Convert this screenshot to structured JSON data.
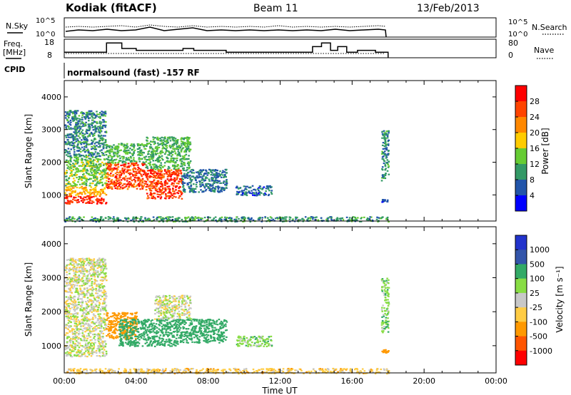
{
  "header": {
    "station": "Kodiak (fitACF)",
    "beam": "Beam 11",
    "date": "13/Feb/2013"
  },
  "summary_panels": {
    "nsky_label": "N.Sky",
    "nsky_ticks": [
      "10^5",
      "10^0"
    ],
    "nsearch_label": "N.Search",
    "nsearch_ticks": [
      "10^5",
      "10^0"
    ],
    "freq_label_line1": "Freq.",
    "freq_label_line2": "[MHz]",
    "freq_ticks": [
      "18",
      "8"
    ],
    "nave_label": "Nave",
    "nave_ticks": [
      "80",
      "0"
    ],
    "cpid_label": "CPID",
    "cpid_text": "normalsound (fast) -157 RF"
  },
  "power_colorbar": {
    "label": "Power [dB]",
    "ticks": [
      "28",
      "24",
      "20",
      "16",
      "12",
      "8",
      "4"
    ],
    "colors": [
      "#ff0000",
      "#ff4400",
      "#ff8800",
      "#ffcc00",
      "#66cc33",
      "#339966",
      "#2255aa",
      "#0000ff"
    ]
  },
  "velocity_colorbar": {
    "label": "Velocity [m s⁻¹]",
    "ticks": [
      "1000",
      "500",
      "100",
      "25",
      "-25",
      "-100",
      "-500",
      "-1000"
    ],
    "colors": [
      "#2233cc",
      "#3355aa",
      "#33aa66",
      "#88dd44",
      "#c8c8c8",
      "#ffcc44",
      "#ff9900",
      "#ff5500",
      "#ff0000"
    ]
  },
  "chart_data": [
    {
      "type": "heatmap",
      "title": "",
      "xlabel": "Time UT",
      "ylabel": "Slant Range [km]",
      "x_ticks": [
        "00:00",
        "04:00",
        "08:00",
        "12:00",
        "16:00",
        "20:00",
        "00:00"
      ],
      "y_ticks": [
        "1000",
        "2000",
        "3000",
        "4000"
      ],
      "xlim_hours": [
        0,
        24
      ],
      "ylim_km": [
        200,
        4500
      ],
      "quantity": "power",
      "regions": [
        {
          "t0": 0.0,
          "t1": 2.3,
          "r0": 750,
          "r1": 1000,
          "value": 28
        },
        {
          "t0": 0.0,
          "t1": 2.3,
          "r0": 1000,
          "r1": 1300,
          "value": 20
        },
        {
          "t0": 0.0,
          "t1": 2.3,
          "r0": 1300,
          "r1": 2200,
          "value": 14
        },
        {
          "t0": 0.0,
          "t1": 2.3,
          "r0": 2200,
          "r1": 3600,
          "value": 9
        },
        {
          "t0": 2.3,
          "t1": 4.5,
          "r0": 1200,
          "r1": 2000,
          "value": 26
        },
        {
          "t0": 2.3,
          "t1": 4.5,
          "r0": 2000,
          "r1": 2600,
          "value": 12
        },
        {
          "t0": 4.5,
          "t1": 6.5,
          "r0": 900,
          "r1": 1800,
          "value": 27
        },
        {
          "t0": 4.5,
          "t1": 7.0,
          "r0": 1800,
          "r1": 2800,
          "value": 12
        },
        {
          "t0": 6.5,
          "t1": 9.0,
          "r0": 1100,
          "r1": 1800,
          "value": 8
        },
        {
          "t0": 9.5,
          "t1": 11.5,
          "r0": 1000,
          "r1": 1300,
          "value": 7
        },
        {
          "t0": 17.6,
          "t1": 18.0,
          "r0": 1400,
          "r1": 3000,
          "value": 9
        },
        {
          "t0": 17.6,
          "t1": 18.0,
          "r0": 800,
          "r1": 900,
          "value": 6
        },
        {
          "t0": 0.0,
          "t1": 18.0,
          "r0": 200,
          "r1": 350,
          "value": 10
        }
      ]
    },
    {
      "type": "heatmap",
      "title": "",
      "xlabel": "Time UT",
      "ylabel": "Slant Range [km]",
      "x_ticks": [
        "00:00",
        "04:00",
        "08:00",
        "12:00",
        "16:00",
        "20:00",
        "00:00"
      ],
      "y_ticks": [
        "1000",
        "2000",
        "3000",
        "4000"
      ],
      "xlim_hours": [
        0,
        24
      ],
      "ylim_km": [
        200,
        4500
      ],
      "quantity": "velocity",
      "regions": [
        {
          "t0": 0.0,
          "t1": 2.3,
          "r0": 700,
          "r1": 2200,
          "value": 0
        },
        {
          "t0": 0.0,
          "t1": 2.3,
          "r0": 2200,
          "r1": 3600,
          "value": 0
        },
        {
          "t0": 2.3,
          "t1": 4.0,
          "r0": 1200,
          "r1": 2000,
          "value": -300
        },
        {
          "t0": 3.0,
          "t1": 6.5,
          "r0": 1000,
          "r1": 1800,
          "value": 200
        },
        {
          "t0": 5.0,
          "t1": 7.0,
          "r0": 1800,
          "r1": 2500,
          "value": 0
        },
        {
          "t0": 6.5,
          "t1": 9.0,
          "r0": 1100,
          "r1": 1800,
          "value": 200
        },
        {
          "t0": 9.5,
          "t1": 11.5,
          "r0": 1000,
          "r1": 1300,
          "value": 60
        },
        {
          "t0": 17.6,
          "t1": 18.0,
          "r0": 1400,
          "r1": 3000,
          "value": 60
        },
        {
          "t0": 17.6,
          "t1": 18.0,
          "r0": 800,
          "r1": 900,
          "value": -300
        },
        {
          "t0": 0.0,
          "t1": 18.0,
          "r0": 200,
          "r1": 350,
          "value": -60
        }
      ]
    },
    {
      "type": "line",
      "title": "",
      "xlabel": "",
      "ylabel": "Freq. [MHz]",
      "ylim": [
        8,
        18
      ],
      "x_hours": [
        0,
        1.0,
        2.3,
        2.35,
        3.2,
        4.0,
        5.5,
        6.6,
        7.2,
        8.0,
        9.0,
        12.0,
        13.2,
        13.8,
        14.3,
        14.8,
        15.2,
        15.7,
        16.3,
        16.8,
        17.3,
        18.0
      ],
      "values": [
        11,
        11,
        11,
        16,
        13,
        12,
        12,
        13,
        12,
        12,
        11,
        11,
        11,
        14,
        16,
        12,
        14,
        11,
        12,
        12,
        11,
        10
      ]
    }
  ]
}
